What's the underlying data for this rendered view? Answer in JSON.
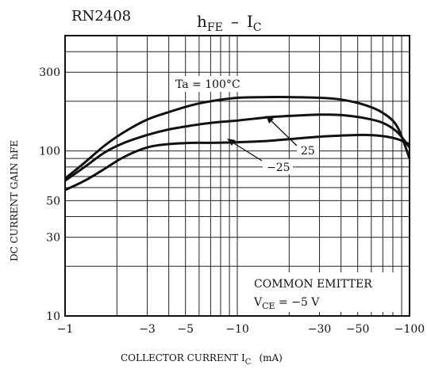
{
  "part_number": "RN2408",
  "chart_data": {
    "type": "line",
    "title": {
      "main": "h",
      "main_sub": "FE",
      "dash": "–",
      "right": "I",
      "right_sub": "C"
    },
    "xlabel": {
      "main": "COLLECTOR CURRENT  I",
      "sub": "C",
      "unit": "(mA)"
    },
    "ylabel": "DC CURRENT GAIN   hFE",
    "x_scale": "log",
    "y_scale": "log",
    "xlim": [
      -1,
      -100
    ],
    "ylim": [
      10,
      500
    ],
    "x_ticks": [
      {
        "value": -1,
        "label": "−1"
      },
      {
        "value": -3,
        "label": "−3"
      },
      {
        "value": -5,
        "label": "−5"
      },
      {
        "value": -10,
        "label": "−10"
      },
      {
        "value": -30,
        "label": "−30"
      },
      {
        "value": -50,
        "label": "−50"
      },
      {
        "value": -100,
        "label": "−100"
      }
    ],
    "y_ticks": [
      {
        "value": 10,
        "label": "10"
      },
      {
        "value": 30,
        "label": "30"
      },
      {
        "value": 50,
        "label": "50"
      },
      {
        "value": 100,
        "label": "100"
      },
      {
        "value": 300,
        "label": "300"
      }
    ],
    "grid": true,
    "series": [
      {
        "name": "Ta = 100°C",
        "x": [
          -1,
          -1.3,
          -1.7,
          -2.2,
          -3,
          -4,
          -5.5,
          -7,
          -10,
          -15,
          -20,
          -30,
          -40,
          -55,
          -70,
          -85,
          -100
        ],
        "y": [
          68,
          85,
          108,
          130,
          155,
          172,
          190,
          200,
          210,
          212,
          212,
          210,
          205,
          190,
          170,
          140,
          90
        ]
      },
      {
        "name": "25",
        "x": [
          -1,
          -1.3,
          -1.7,
          -2.2,
          -3,
          -4,
          -5.5,
          -7,
          -10,
          -15,
          -20,
          -30,
          -40,
          -55,
          -70,
          -85,
          -100
        ],
        "y": [
          66,
          80,
          98,
          112,
          125,
          135,
          143,
          148,
          153,
          160,
          163,
          166,
          165,
          158,
          148,
          130,
          105
        ]
      },
      {
        "name": "−25",
        "x": [
          -1,
          -1.3,
          -1.7,
          -2.2,
          -3,
          -4,
          -5.5,
          -7,
          -10,
          -15,
          -20,
          -30,
          -40,
          -55,
          -70,
          -85,
          -100
        ],
        "y": [
          58,
          66,
          78,
          92,
          105,
          110,
          112,
          112,
          113,
          115,
          118,
          122,
          124,
          125,
          123,
          118,
          110
        ]
      }
    ],
    "annotations": {
      "curve_100": "Ta = 100°C",
      "curve_25": "25",
      "curve_m25": "−25",
      "common_emitter": "COMMON EMITTER",
      "vce_main": "V",
      "vce_sub": "CE",
      "vce_value": " = −5 V"
    }
  }
}
